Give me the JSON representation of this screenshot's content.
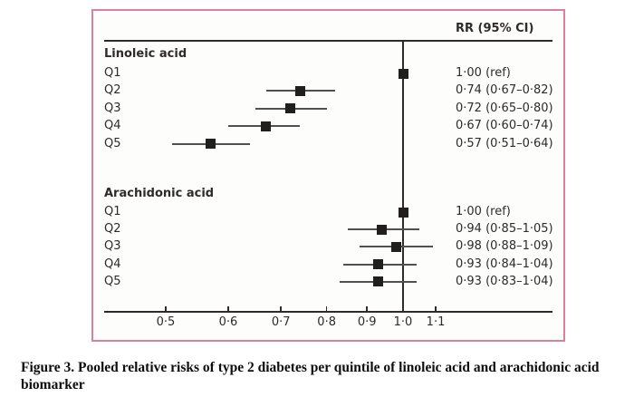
{
  "caption": {
    "line1": "Figure 3. Pooled relative risks of type 2 diabetes per quintile of linoleic acid and arachidonic acid",
    "line2": "biomarker"
  },
  "colors": {
    "frame_pink": "#d9809e",
    "plot_background": "#fdfdfb",
    "axis_line": "#2e2b28",
    "ci_line": "#51504e",
    "marker": "#211f1d",
    "plot_text": "#2e2b28",
    "caption_text": "#0e0e0e"
  },
  "chart_data": {
    "type": "forest",
    "scale": "log",
    "rr_header": "RR (95% CI)",
    "reference_line": 1.0,
    "xlim": [
      0.42,
      1.55
    ],
    "grid": false,
    "ticks": [
      {
        "value": 0.5,
        "label": "0·5"
      },
      {
        "value": 0.6,
        "label": "0·6"
      },
      {
        "value": 0.7,
        "label": "0·7"
      },
      {
        "value": 0.8,
        "label": "0·8"
      },
      {
        "value": 0.9,
        "label": "0·9"
      },
      {
        "value": 1.0,
        "label": "1·0"
      },
      {
        "value": 1.1,
        "label": "1·1"
      }
    ],
    "groups": [
      {
        "name": "Linoleic acid",
        "rows": [
          {
            "label": "Q1",
            "rr": 1.0,
            "ci_low": null,
            "ci_high": null,
            "display": "1·00 (ref)"
          },
          {
            "label": "Q2",
            "rr": 0.74,
            "ci_low": 0.67,
            "ci_high": 0.82,
            "display": "0·74 (0·67–0·82)"
          },
          {
            "label": "Q3",
            "rr": 0.72,
            "ci_low": 0.65,
            "ci_high": 0.8,
            "display": "0·72 (0·65–0·80)"
          },
          {
            "label": "Q4",
            "rr": 0.67,
            "ci_low": 0.6,
            "ci_high": 0.74,
            "display": "0·67 (0·60–0·74)"
          },
          {
            "label": "Q5",
            "rr": 0.57,
            "ci_low": 0.51,
            "ci_high": 0.64,
            "display": "0·57 (0·51–0·64)"
          }
        ]
      },
      {
        "name": "Arachidonic acid",
        "rows": [
          {
            "label": "Q1",
            "rr": 1.0,
            "ci_low": null,
            "ci_high": null,
            "display": "1·00 (ref)"
          },
          {
            "label": "Q2",
            "rr": 0.94,
            "ci_low": 0.85,
            "ci_high": 1.05,
            "display": "0·94 (0·85–1·05)"
          },
          {
            "label": "Q3",
            "rr": 0.98,
            "ci_low": 0.88,
            "ci_high": 1.09,
            "display": "0·98 (0·88–1·09)"
          },
          {
            "label": "Q4",
            "rr": 0.93,
            "ci_low": 0.84,
            "ci_high": 1.04,
            "display": "0·93 (0·84–1·04)"
          },
          {
            "label": "Q5",
            "rr": 0.93,
            "ci_low": 0.83,
            "ci_high": 1.04,
            "display": "0·93 (0·83–1·04)"
          }
        ]
      }
    ]
  }
}
